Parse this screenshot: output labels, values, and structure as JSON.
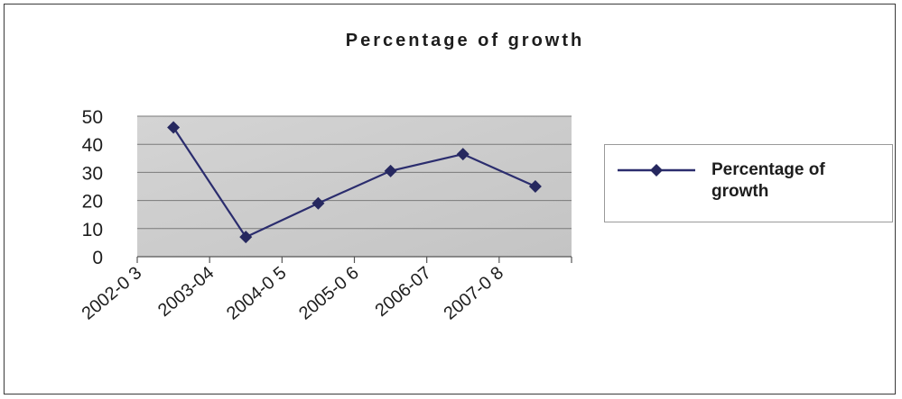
{
  "chart_data": {
    "type": "line",
    "title": "Percentage of growth",
    "categories": [
      "2002-0 3",
      "2003-04",
      "2004-0 5",
      "2005-0 6",
      "2006-07",
      "2007-0 8"
    ],
    "series": [
      {
        "name": "Percentage of growth",
        "values": [
          46,
          7,
          19,
          30.5,
          36.5,
          25
        ]
      }
    ],
    "ylim": [
      0,
      50
    ],
    "yticks": [
      0,
      10,
      20,
      30,
      40,
      50
    ],
    "grid": true,
    "legend": "right",
    "xlabel": "",
    "ylabel": ""
  },
  "colors": {
    "line": "#2b2d6e",
    "marker": "#26285f",
    "plot_background": "#cdcdcd",
    "gridline": "#7a7a7a",
    "text": "#1d1d1d"
  },
  "legend_label": "Percentage of growth"
}
